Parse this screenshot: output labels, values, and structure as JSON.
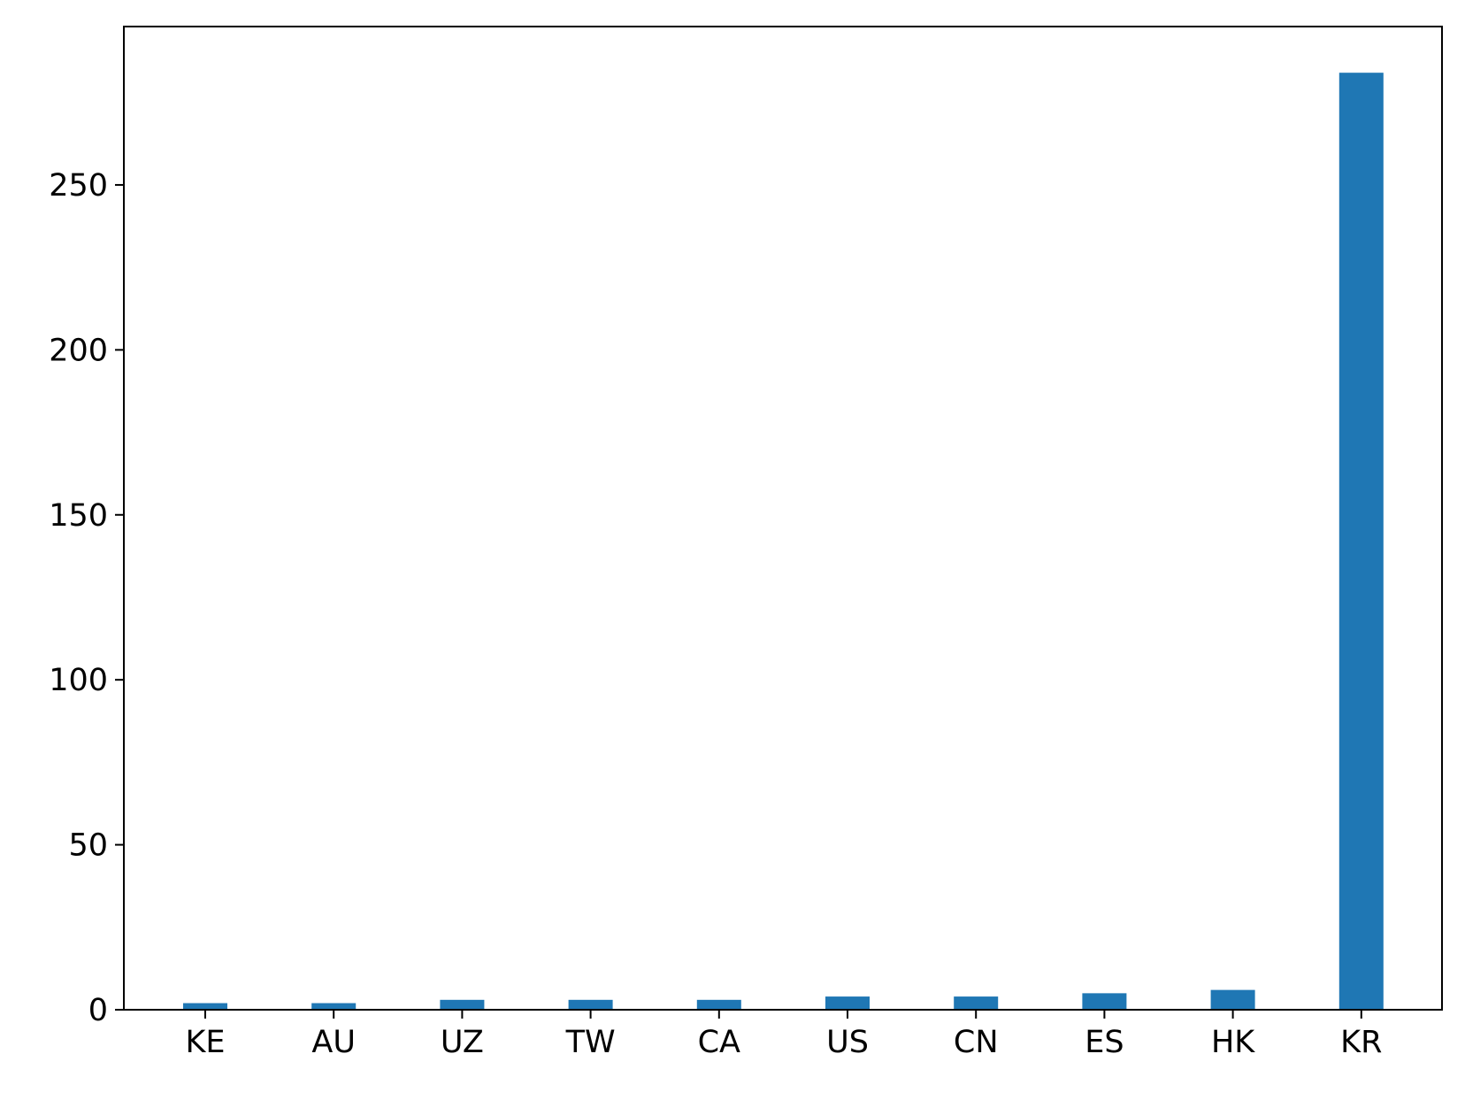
{
  "chart_data": {
    "type": "bar",
    "title": "",
    "xlabel": "",
    "ylabel": "",
    "categories": [
      "KE",
      "AU",
      "UZ",
      "TW",
      "CA",
      "US",
      "CN",
      "ES",
      "HK",
      "KR"
    ],
    "values": [
      2,
      2,
      3,
      3,
      3,
      4,
      4,
      5,
      6,
      284
    ],
    "ylim": [
      0,
      298
    ],
    "yticks": [
      0,
      50,
      100,
      150,
      200,
      250
    ],
    "grid": false,
    "legend": "none",
    "bar_color": "#1f77b4",
    "axis_color": "#000000"
  }
}
